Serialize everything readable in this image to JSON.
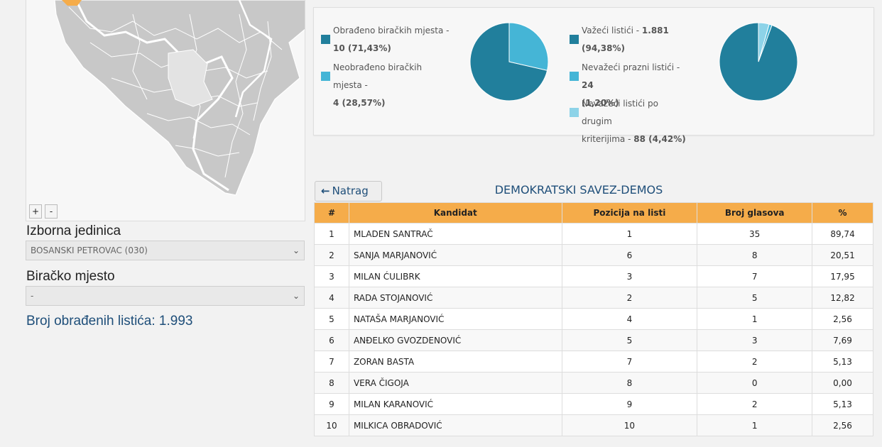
{
  "map": {
    "zoom_in": "+",
    "zoom_out": "-"
  },
  "form": {
    "constituency_label": "Izborna jedinica",
    "constituency_value": "BOSANSKI PETROVAC (030)",
    "polling_label": "Biračko mjesto",
    "polling_value": "-",
    "ballots_processed_text": "Broj obrađenih listića: 1.993"
  },
  "stats": {
    "left_legend": [
      {
        "label": "Obrađeno biračkih mjesta - ",
        "line2": "10 (71,43%)",
        "color": "#217f9c"
      },
      {
        "label": "Neobrađeno biračkih mjesta - ",
        "line2": "4 (28,57%)",
        "color": "#45b5d6"
      }
    ],
    "right_legend": [
      {
        "label": "Važeći listići - ",
        "value": "1.881",
        "line2": "(94,38%)",
        "color": "#217f9c"
      },
      {
        "label": "Nevažeći prazni listići - ",
        "value": "24",
        "line2": "(1,20%)",
        "color": "#45b5d6"
      },
      {
        "label": "Nevažeći listići po drugim",
        "line2_prefix": "kriterijima - ",
        "line2": "88 (4,42%)",
        "color": "#8dd3e8"
      }
    ],
    "pie_left": {
      "values": [
        71.43,
        28.57
      ],
      "colors": [
        "#217f9c",
        "#45b5d6"
      ]
    },
    "pie_right": {
      "values": [
        94.38,
        1.2,
        4.42
      ],
      "colors": [
        "#217f9c",
        "#45b5d6",
        "#8dd3e8"
      ]
    }
  },
  "party": {
    "back_label": "Natrag",
    "name": "DEMOKRATSKI SAVEZ-DEMOS"
  },
  "table": {
    "headers": [
      "#",
      "Kandidat",
      "Pozicija na listi",
      "Broj glasova",
      "%"
    ],
    "rows": [
      [
        "1",
        "MLADEN SANTRAČ",
        "1",
        "35",
        "89,74"
      ],
      [
        "2",
        "SANJA MARJANOVIĆ",
        "6",
        "8",
        "20,51"
      ],
      [
        "3",
        "MILAN ĆULIBRK",
        "3",
        "7",
        "17,95"
      ],
      [
        "4",
        "RADA STOJANOVIĆ",
        "2",
        "5",
        "12,82"
      ],
      [
        "5",
        "NATAŠA MARJANOVIĆ",
        "4",
        "1",
        "2,56"
      ],
      [
        "6",
        "ANĐELKO GVOZDENOVIĆ",
        "5",
        "3",
        "7,69"
      ],
      [
        "7",
        "ZORAN BASTA",
        "7",
        "2",
        "5,13"
      ],
      [
        "8",
        "VERA ČIGOJA",
        "8",
        "0",
        "0,00"
      ],
      [
        "9",
        "MILAN KARANOVIĆ",
        "9",
        "2",
        "5,13"
      ],
      [
        "10",
        "MILKICA OBRADOVIĆ",
        "10",
        "1",
        "2,56"
      ]
    ]
  }
}
